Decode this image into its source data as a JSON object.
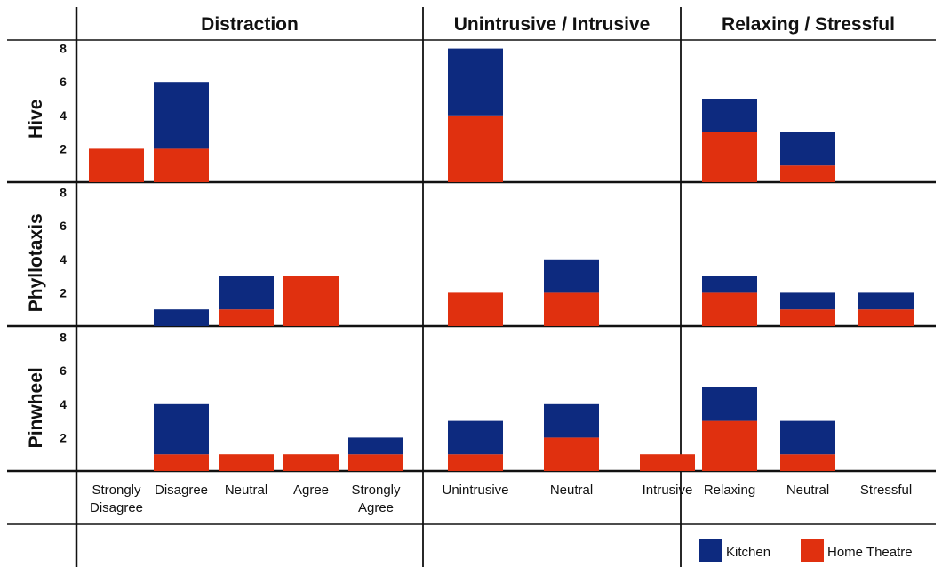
{
  "colors": {
    "kitchen": "#0d2a7f",
    "home_theatre": "#e0300f"
  },
  "chart_data": {
    "type": "bar",
    "stacked": true,
    "columns": [
      "Distraction",
      "Unintrusive / Intrusive",
      "Relaxing / Stressful"
    ],
    "rows": [
      "Hive",
      "Phyllotaxis",
      "Pinwheel"
    ],
    "ylim": [
      0,
      8
    ],
    "yticks": [
      2,
      4,
      6,
      8
    ],
    "series_names": [
      "Kitchen",
      "Home Theatre"
    ],
    "legend_position": "bottom-right",
    "panels": [
      {
        "categories": [
          "Strongly Disagree",
          "Disagree",
          "Neutral",
          "Agree",
          "Strongly Agree"
        ],
        "category_lines": [
          [
            "Strongly",
            "Disagree"
          ],
          [
            "Disagree"
          ],
          [
            "Neutral"
          ],
          [
            "Agree"
          ],
          [
            "Strongly",
            "Agree"
          ]
        ],
        "series": {
          "Hive": {
            "home_theatre": [
              2,
              2,
              0,
              0,
              0
            ],
            "kitchen": [
              0,
              4,
              0,
              0,
              0
            ]
          },
          "Phyllotaxis": {
            "home_theatre": [
              0,
              0,
              1,
              3,
              0
            ],
            "kitchen": [
              0,
              1,
              2,
              0,
              0
            ]
          },
          "Pinwheel": {
            "home_theatre": [
              0,
              1,
              1,
              1,
              1
            ],
            "kitchen": [
              0,
              3,
              0,
              0,
              1
            ]
          }
        }
      },
      {
        "categories": [
          "Unintrusive",
          "Neutral",
          "Intrusive"
        ],
        "category_lines": [
          [
            "Unintrusive"
          ],
          [
            "Neutral"
          ],
          [
            "Intrusive"
          ]
        ],
        "series": {
          "Hive": {
            "home_theatre": [
              4,
              0,
              0
            ],
            "kitchen": [
              4,
              0,
              0
            ]
          },
          "Phyllotaxis": {
            "home_theatre": [
              2,
              2,
              0
            ],
            "kitchen": [
              0,
              2,
              0
            ]
          },
          "Pinwheel": {
            "home_theatre": [
              1,
              2,
              1
            ],
            "kitchen": [
              2,
              2,
              0
            ]
          }
        }
      },
      {
        "categories": [
          "Relaxing",
          "Neutral",
          "Stressful"
        ],
        "category_lines": [
          [
            "Relaxing"
          ],
          [
            "Neutral"
          ],
          [
            "Stressful"
          ]
        ],
        "series": {
          "Hive": {
            "home_theatre": [
              3,
              1,
              0
            ],
            "kitchen": [
              2,
              2,
              0
            ]
          },
          "Phyllotaxis": {
            "home_theatre": [
              2,
              1,
              1
            ],
            "kitchen": [
              1,
              1,
              1
            ]
          },
          "Pinwheel": {
            "home_theatre": [
              3,
              1,
              0
            ],
            "kitchen": [
              2,
              2,
              0
            ]
          }
        }
      }
    ],
    "legend": [
      {
        "key": "kitchen",
        "label": "Kitchen"
      },
      {
        "key": "home_theatre",
        "label": "Home Theatre"
      }
    ]
  }
}
